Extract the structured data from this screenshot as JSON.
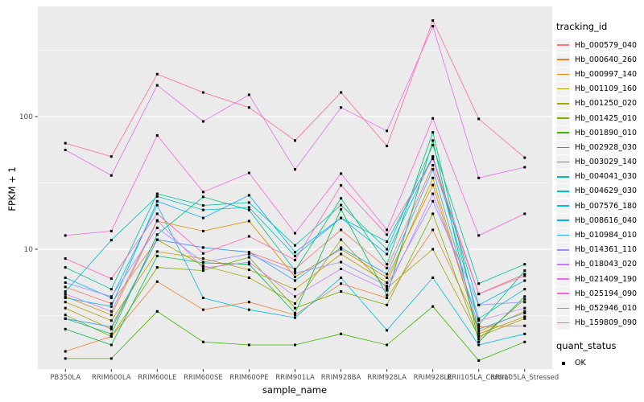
{
  "chart_data": {
    "type": "line",
    "xlabel": "sample_name",
    "ylabel": "FPKM + 1",
    "y_scale": "log10",
    "y_ticks": [
      10,
      100
    ],
    "y_minor_ticks": [
      3.1623,
      31.623,
      316.23
    ],
    "ylim": [
      1.25,
      680
    ],
    "grid": "on",
    "legend_position": "right",
    "point_shape": "square",
    "point_color": "#000000",
    "categories": [
      "PB350LA",
      "RRIM600LA",
      "RRIM600LE",
      "RRIM600SE",
      "RRIM600PE",
      "RRIM901LA",
      "RRIM928BA",
      "RRIM928LA",
      "RRIM928LE",
      "RRII105LA_Control",
      "RRII105LA_Stressed"
    ],
    "legend": {
      "tracking_title": "tracking_id",
      "quant_title": "quant_status",
      "quant_value": "OK"
    },
    "series": [
      {
        "name": "Hb_000579_040",
        "color": "#F8766D",
        "values": [
          5.2,
          3.9,
          11.8,
          10.3,
          9.5,
          7.1,
          14.0,
          7.2,
          43,
          4.6,
          6.5
        ]
      },
      {
        "name": "Hb_000640_260",
        "color": "#EA8331",
        "values": [
          1.7,
          2.2,
          5.7,
          3.5,
          4.0,
          3.2,
          5.5,
          4.3,
          14,
          2.6,
          2.65
        ]
      },
      {
        "name": "Hb_000997_140",
        "color": "#D89000",
        "values": [
          4.4,
          3.2,
          16.3,
          13.7,
          16.3,
          6.2,
          10.0,
          6.1,
          30.5,
          2.4,
          3.4
        ]
      },
      {
        "name": "Hb_001109_160",
        "color": "#C09B00",
        "values": [
          4.0,
          2.9,
          9.6,
          8.5,
          7.0,
          5.0,
          9.2,
          5.6,
          34.5,
          2.3,
          3.1
        ]
      },
      {
        "name": "Hb_001250_020",
        "color": "#A3A500",
        "values": [
          3.6,
          2.5,
          11.8,
          7.5,
          6.1,
          3.9,
          11.8,
          5.1,
          10.0,
          2.2,
          3.0
        ]
      },
      {
        "name": "Hb_001425_010",
        "color": "#7CAE00",
        "values": [
          3.2,
          2.2,
          7.3,
          6.9,
          8.7,
          3.6,
          4.8,
          3.8,
          18.5,
          2.1,
          4.2
        ]
      },
      {
        "name": "Hb_001890_010",
        "color": "#39B600",
        "values": [
          1.5,
          1.5,
          3.4,
          2.0,
          1.9,
          1.9,
          2.3,
          1.9,
          3.7,
          1.45,
          2.0
        ]
      },
      {
        "name": "Hb_002928_030",
        "color": "#00BB4E",
        "values": [
          2.5,
          1.9,
          8.9,
          7.9,
          7.7,
          3.3,
          20,
          4.5,
          66,
          2.0,
          4.4
        ]
      },
      {
        "name": "Hb_003029_140",
        "color": "#00BF7D",
        "values": [
          3.0,
          2.3,
          12.9,
          24.8,
          19.8,
          6.9,
          24.2,
          7.7,
          76,
          2.7,
          6.9
        ]
      },
      {
        "name": "Hb_004041_030",
        "color": "#00C1A3",
        "values": [
          7.3,
          5.0,
          26.2,
          21.4,
          22.5,
          10.7,
          21.5,
          10.0,
          61,
          5.5,
          7.7
        ]
      },
      {
        "name": "Hb_004629_030",
        "color": "#00BFC4",
        "values": [
          4.8,
          11.7,
          25,
          19.8,
          20.7,
          8.9,
          17.2,
          11.4,
          50,
          3.0,
          5.0
        ]
      },
      {
        "name": "Hb_007576_180",
        "color": "#00BAE0",
        "values": [
          6.1,
          4.3,
          21.5,
          4.3,
          3.5,
          3.05,
          6.1,
          2.45,
          6.1,
          1.9,
          2.3
        ]
      },
      {
        "name": "Hb_008616_040",
        "color": "#00B0F6",
        "values": [
          4.3,
          3.7,
          23,
          17.2,
          25.5,
          9.5,
          17.2,
          9.2,
          50,
          3.8,
          5.8
        ]
      },
      {
        "name": "Hb_010984_010",
        "color": "#35A2FF",
        "values": [
          3.0,
          2.6,
          11.8,
          10.3,
          9.5,
          5.8,
          10.3,
          6.5,
          40,
          2.5,
          3.3
        ]
      },
      {
        "name": "Hb_014361_110",
        "color": "#9590FF",
        "values": [
          5.6,
          4.4,
          14.5,
          8.0,
          9.2,
          6.6,
          8.0,
          5.3,
          23,
          3.8,
          4.0
        ]
      },
      {
        "name": "Hb_018043_020",
        "color": "#C77CFF",
        "values": [
          4.6,
          3.4,
          16.5,
          7.2,
          8.0,
          4.4,
          7.1,
          4.9,
          26.2,
          2.9,
          3.6
        ]
      },
      {
        "name": "Hb_021409_190",
        "color": "#E76BF3",
        "values": [
          56,
          36,
          172,
          92,
          146,
          40,
          117,
          78,
          480,
          34.5,
          41.5
        ]
      },
      {
        "name": "Hb_025194_090",
        "color": "#FA62DB",
        "values": [
          12.7,
          13.7,
          72,
          27,
          37.6,
          13.2,
          37.2,
          14,
          97,
          12.7,
          18.5
        ]
      },
      {
        "name": "Hb_052946_010",
        "color": "#FF62BC",
        "values": [
          8.5,
          6.0,
          18.5,
          9.3,
          12.5,
          8.3,
          30.3,
          12.9,
          48,
          4.6,
          6.3
        ]
      },
      {
        "name": "Hb_159809_090",
        "color": "#FF6A98",
        "values": [
          63,
          50,
          209,
          152,
          117,
          66,
          152,
          60,
          530,
          96,
          49
        ]
      }
    ]
  },
  "colors": {
    "panel_bg": "#EBEBEB",
    "grid": "#FFFFFF",
    "tick": "#333333",
    "axis_text": "#4D4D4D"
  }
}
